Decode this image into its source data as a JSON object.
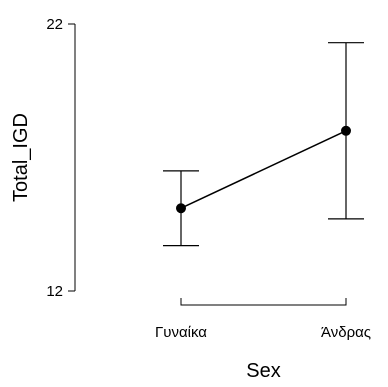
{
  "chart_data": {
    "type": "line",
    "title": "",
    "xlabel": "Sex",
    "ylabel": "Total_IGD",
    "categories": [
      "Γυναίκα",
      "Άνδρας"
    ],
    "series": [
      {
        "values": [
          15.1,
          18.0
        ],
        "ci_lower": [
          13.7,
          14.7
        ],
        "ci_upper": [
          16.5,
          21.3
        ]
      }
    ],
    "yticks": [
      12,
      22
    ],
    "ylim": [
      12,
      22
    ],
    "grid": false,
    "legend": "none",
    "colors": {
      "line": "#000000",
      "point": "#000000",
      "axis": "#000000"
    }
  }
}
